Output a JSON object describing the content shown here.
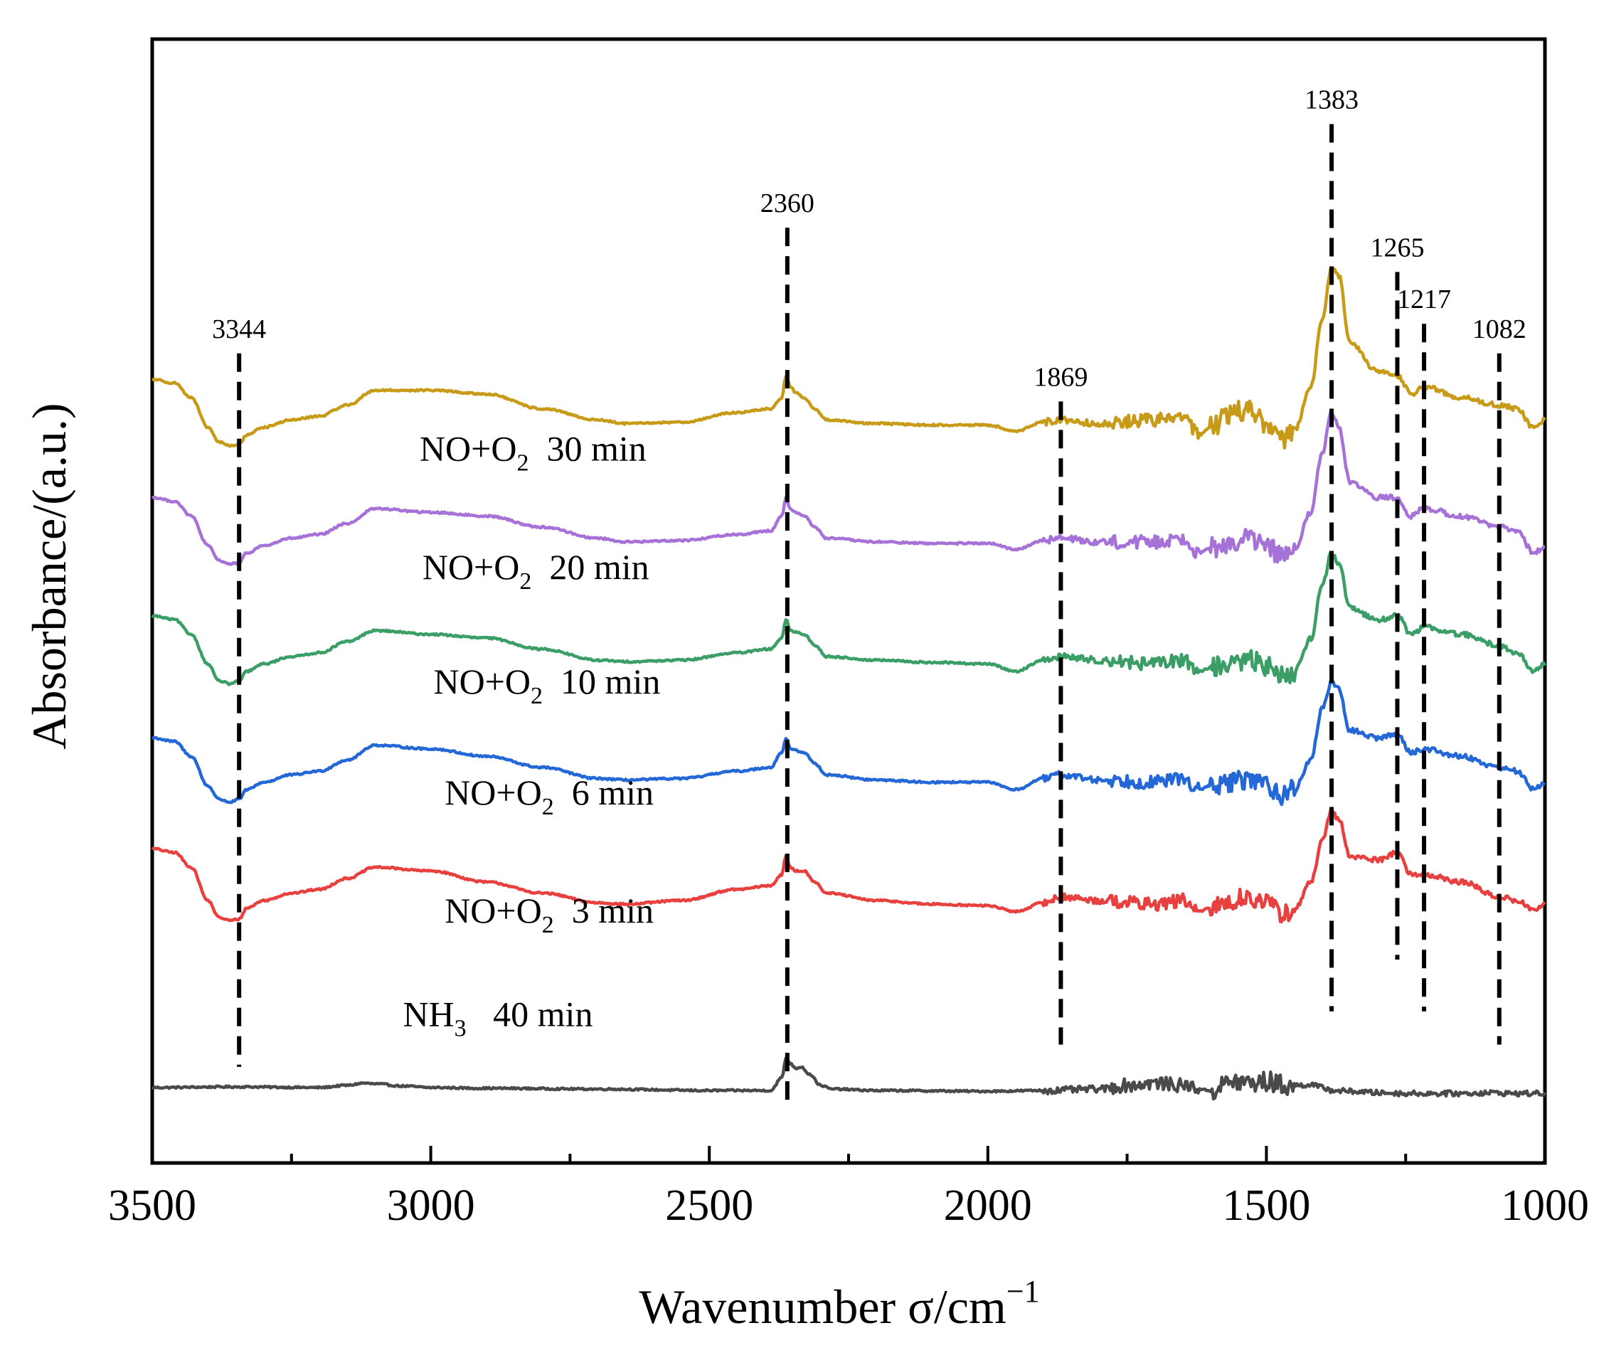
{
  "chart_data": {
    "type": "line",
    "title": "",
    "xlabel": "Wavenumber σ/cm",
    "xlabel_superscript": "−1",
    "ylabel": "Absorbance/(a.u.)",
    "xlim": [
      3500,
      1000
    ],
    "x_reversed": true,
    "x_ticks": [
      3500,
      3000,
      2500,
      2000,
      1500,
      1000
    ],
    "x_tick_labels": [
      "3500",
      "3000",
      "2500",
      "2000",
      "1500",
      "1000"
    ],
    "y_ticks_shown": false,
    "grid": false,
    "peaks": [
      {
        "label": "3344",
        "x": 3344,
        "y_top": 9.95,
        "y_bottom": 0.3
      },
      {
        "label": "2360",
        "x": 2360,
        "y_top": 11.65,
        "y_bottom": -0.25
      },
      {
        "label": "1869",
        "x": 1869,
        "y_top": 9.3,
        "y_bottom": 0.6
      },
      {
        "label": "1383",
        "x": 1383,
        "y_top": 13.05,
        "y_bottom": 1.05
      },
      {
        "label": "1265",
        "x": 1265,
        "y_top": 11.05,
        "y_bottom": 1.75
      },
      {
        "label": "1217",
        "x": 1217,
        "y_top": 10.35,
        "y_bottom": 1.05
      },
      {
        "label": "1082",
        "x": 1082,
        "y_top": 9.95,
        "y_bottom": 0.6
      }
    ],
    "series": [
      {
        "name": "NH3 40 min",
        "label_main": "NH",
        "label_sub": "3",
        "label_rest": "   40 min",
        "color": "#4a4a4a",
        "offset": 0.0,
        "label_x": 3050,
        "label_y": 0.85,
        "x": [
          3500,
          3350,
          3200,
          3150,
          3120,
          3100,
          3050,
          3000,
          2900,
          2700,
          2500,
          2390,
          2370,
          2362,
          2355,
          2345,
          2335,
          2320,
          2300,
          2280,
          2200,
          2000,
          1900,
          1800,
          1750,
          1700,
          1650,
          1600,
          1560,
          1530,
          1500,
          1460,
          1420,
          1400,
          1380,
          1350,
          1300,
          1250,
          1200,
          1150,
          1100,
          1050,
          1000
        ],
        "y": [
          0.02,
          0.03,
          0.02,
          0.05,
          0.08,
          0.07,
          0.04,
          0.02,
          0.01,
          0.0,
          -0.02,
          -0.02,
          0.15,
          0.42,
          0.35,
          0.28,
          0.3,
          0.2,
          0.05,
          0.0,
          -0.02,
          -0.03,
          -0.02,
          0.0,
          0.05,
          0.08,
          0.05,
          -0.02,
          0.1,
          0.08,
          0.1,
          0.04,
          0.06,
          0.02,
          -0.02,
          -0.03,
          -0.05,
          -0.06,
          -0.06,
          -0.06,
          -0.05,
          -0.06,
          -0.06
        ]
      },
      {
        "name": "NO+O2 3 min",
        "label_main": "NO+O",
        "label_sub": "2",
        "label_rest": "  3 min",
        "color": "#e8403f",
        "offset": 1.6,
        "label_x": 2975,
        "label_y": 2.25,
        "x": [
          3500,
          3460,
          3430,
          3400,
          3380,
          3360,
          3344,
          3330,
          3300,
          3250,
          3200,
          3150,
          3100,
          3000,
          2900,
          2800,
          2700,
          2650,
          2550,
          2450,
          2390,
          2370,
          2362,
          2355,
          2345,
          2330,
          2310,
          2290,
          2200,
          2100,
          2000,
          1950,
          1900,
          1870,
          1800,
          1700,
          1650,
          1620,
          1600,
          1560,
          1530,
          1500,
          1470,
          1450,
          1420,
          1400,
          1383,
          1370,
          1350,
          1300,
          1265,
          1240,
          1217,
          1150,
          1082,
          1050,
          1020,
          1000
        ],
        "y": [
          1.65,
          1.6,
          1.4,
          0.95,
          0.72,
          0.68,
          0.7,
          0.85,
          0.95,
          1.05,
          1.1,
          1.25,
          1.4,
          1.35,
          1.2,
          1.05,
          0.92,
          0.9,
          0.95,
          1.1,
          1.15,
          1.3,
          1.55,
          1.4,
          1.35,
          1.35,
          1.2,
          1.05,
          0.95,
          0.9,
          0.88,
          0.8,
          0.92,
          1.0,
          0.95,
          0.9,
          0.95,
          0.8,
          0.85,
          0.95,
          1.0,
          0.9,
          0.78,
          0.82,
          1.2,
          1.75,
          2.15,
          2.05,
          1.55,
          1.5,
          1.6,
          1.3,
          1.3,
          1.2,
          1.0,
          0.95,
          0.82,
          0.9
        ]
      },
      {
        "name": "NO+O2 6 min",
        "label_main": "NO+O",
        "label_sub": "2",
        "label_rest": "  6 min",
        "color": "#2468d8",
        "offset": 3.2,
        "label_x": 2975,
        "label_y": 3.85,
        "x": [
          3500,
          3460,
          3430,
          3400,
          3380,
          3360,
          3344,
          3330,
          3300,
          3250,
          3200,
          3150,
          3100,
          3000,
          2900,
          2800,
          2700,
          2650,
          2550,
          2450,
          2390,
          2370,
          2362,
          2355,
          2345,
          2330,
          2310,
          2290,
          2200,
          2100,
          2000,
          1950,
          1900,
          1870,
          1800,
          1700,
          1650,
          1620,
          1600,
          1560,
          1530,
          1500,
          1470,
          1450,
          1420,
          1400,
          1383,
          1370,
          1350,
          1300,
          1265,
          1240,
          1217,
          1150,
          1082,
          1050,
          1020,
          1000
        ],
        "y": [
          1.55,
          1.5,
          1.3,
          0.9,
          0.72,
          0.68,
          0.72,
          0.85,
          0.95,
          1.05,
          1.1,
          1.25,
          1.45,
          1.4,
          1.3,
          1.15,
          1.0,
          0.98,
          1.0,
          1.1,
          1.15,
          1.35,
          1.55,
          1.4,
          1.38,
          1.35,
          1.2,
          1.05,
          0.98,
          0.95,
          0.95,
          0.85,
          1.0,
          1.05,
          0.98,
          0.95,
          1.0,
          0.85,
          0.9,
          0.95,
          1.0,
          0.92,
          0.78,
          0.85,
          1.25,
          1.95,
          2.3,
          2.2,
          1.65,
          1.55,
          1.6,
          1.35,
          1.4,
          1.3,
          1.15,
          1.1,
          0.85,
          0.95
        ]
      },
      {
        "name": "NO+O2 10 min",
        "label_main": "NO+O",
        "label_sub": "2",
        "label_rest": "  10 min",
        "color": "#3a9e66",
        "offset": 4.8,
        "label_x": 2995,
        "label_y": 5.35,
        "x": [
          3500,
          3460,
          3430,
          3400,
          3380,
          3360,
          3344,
          3330,
          3300,
          3250,
          3200,
          3150,
          3100,
          3000,
          2900,
          2800,
          2700,
          2650,
          2550,
          2450,
          2390,
          2370,
          2362,
          2355,
          2345,
          2330,
          2310,
          2290,
          2200,
          2100,
          2000,
          1950,
          1900,
          1870,
          1800,
          1700,
          1650,
          1620,
          1600,
          1560,
          1530,
          1500,
          1470,
          1450,
          1420,
          1400,
          1383,
          1370,
          1350,
          1300,
          1265,
          1240,
          1217,
          1150,
          1082,
          1050,
          1020,
          1000
        ],
        "y": [
          1.6,
          1.55,
          1.35,
          0.95,
          0.72,
          0.68,
          0.72,
          0.85,
          0.95,
          1.05,
          1.1,
          1.25,
          1.4,
          1.35,
          1.3,
          1.15,
          1.0,
          0.98,
          1.0,
          1.1,
          1.15,
          1.3,
          1.55,
          1.4,
          1.38,
          1.35,
          1.2,
          1.05,
          1.0,
          0.97,
          0.95,
          0.85,
          1.0,
          1.05,
          1.0,
          0.95,
          1.0,
          0.85,
          0.9,
          0.95,
          1.0,
          0.92,
          0.78,
          0.85,
          1.3,
          2.0,
          2.45,
          2.3,
          1.7,
          1.55,
          1.6,
          1.35,
          1.45,
          1.35,
          1.2,
          1.1,
          0.85,
          0.95
        ]
      },
      {
        "name": "NO+O2 20 min",
        "label_main": "NO+O",
        "label_sub": "2",
        "label_rest": "  20 min",
        "color": "#a672d8",
        "offset": 6.4,
        "label_x": 3015,
        "label_y": 6.9,
        "x": [
          3500,
          3460,
          3430,
          3400,
          3380,
          3360,
          3344,
          3330,
          3300,
          3250,
          3200,
          3150,
          3100,
          3000,
          2900,
          2800,
          2700,
          2650,
          2550,
          2450,
          2390,
          2370,
          2362,
          2355,
          2345,
          2330,
          2310,
          2290,
          2200,
          2100,
          2000,
          1950,
          1900,
          1870,
          1800,
          1700,
          1650,
          1620,
          1600,
          1560,
          1530,
          1500,
          1470,
          1450,
          1420,
          1400,
          1383,
          1370,
          1350,
          1300,
          1265,
          1240,
          1217,
          1150,
          1082,
          1050,
          1020,
          1000
        ],
        "y": [
          1.6,
          1.55,
          1.35,
          0.95,
          0.75,
          0.7,
          0.72,
          0.85,
          0.95,
          1.05,
          1.1,
          1.25,
          1.45,
          1.4,
          1.35,
          1.2,
          1.05,
          1.0,
          1.02,
          1.1,
          1.15,
          1.35,
          1.6,
          1.45,
          1.4,
          1.35,
          1.2,
          1.05,
          1.0,
          0.98,
          0.98,
          0.9,
          1.02,
          1.05,
          1.0,
          1.0,
          1.05,
          0.85,
          0.92,
          1.0,
          1.05,
          0.95,
          0.8,
          0.88,
          1.4,
          2.2,
          2.75,
          2.55,
          1.8,
          1.6,
          1.6,
          1.35,
          1.45,
          1.35,
          1.2,
          1.15,
          0.85,
          0.95
        ]
      },
      {
        "name": "NO+O2 30 min",
        "label_main": "NO+O",
        "label_sub": "2",
        "label_rest": "  30 min",
        "color": "#c79a18",
        "offset": 8.0,
        "label_x": 3020,
        "label_y": 8.5,
        "x": [
          3500,
          3460,
          3430,
          3400,
          3380,
          3360,
          3344,
          3330,
          3300,
          3250,
          3200,
          3150,
          3100,
          3000,
          2900,
          2800,
          2700,
          2650,
          2550,
          2450,
          2390,
          2370,
          2362,
          2355,
          2345,
          2330,
          2310,
          2290,
          2200,
          2100,
          2000,
          1950,
          1900,
          1870,
          1800,
          1700,
          1650,
          1620,
          1600,
          1560,
          1530,
          1500,
          1470,
          1450,
          1420,
          1400,
          1383,
          1370,
          1350,
          1300,
          1265,
          1240,
          1217,
          1150,
          1082,
          1050,
          1020,
          1000
        ],
        "y": [
          1.6,
          1.55,
          1.35,
          0.95,
          0.75,
          0.7,
          0.72,
          0.85,
          0.95,
          1.05,
          1.1,
          1.25,
          1.45,
          1.45,
          1.4,
          1.2,
          1.05,
          1.0,
          1.02,
          1.15,
          1.2,
          1.35,
          1.65,
          1.5,
          1.42,
          1.35,
          1.2,
          1.05,
          1.0,
          0.98,
          0.98,
          0.9,
          1.02,
          1.05,
          1.0,
          1.05,
          1.1,
          0.85,
          0.95,
          1.15,
          1.2,
          1.0,
          0.8,
          0.9,
          1.5,
          2.4,
          3.1,
          3.0,
          2.1,
          1.7,
          1.65,
          1.4,
          1.5,
          1.35,
          1.25,
          1.2,
          0.95,
          1.05
        ]
      }
    ]
  }
}
